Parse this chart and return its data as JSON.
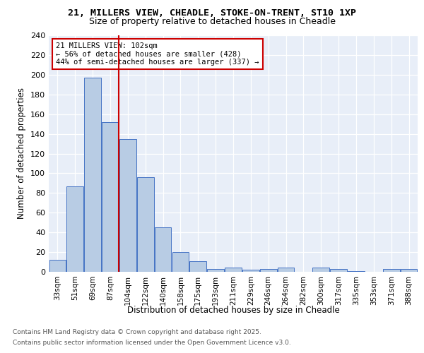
{
  "title_line1": "21, MILLERS VIEW, CHEADLE, STOKE-ON-TRENT, ST10 1XP",
  "title_line2": "Size of property relative to detached houses in Cheadle",
  "xlabel": "Distribution of detached houses by size in Cheadle",
  "ylabel": "Number of detached properties",
  "categories": [
    "33sqm",
    "51sqm",
    "69sqm",
    "87sqm",
    "104sqm",
    "122sqm",
    "140sqm",
    "158sqm",
    "175sqm",
    "193sqm",
    "211sqm",
    "229sqm",
    "246sqm",
    "264sqm",
    "282sqm",
    "300sqm",
    "317sqm",
    "335sqm",
    "353sqm",
    "371sqm",
    "388sqm"
  ],
  "values": [
    12,
    87,
    197,
    152,
    135,
    96,
    45,
    20,
    11,
    3,
    4,
    2,
    3,
    4,
    0,
    4,
    3,
    1,
    0,
    3,
    3
  ],
  "bar_color": "#b8cce4",
  "bar_edge_color": "#4472c4",
  "background_color": "#E8EEF8",
  "grid_color": "#ffffff",
  "vline_pos": 3.5,
  "vline_color": "#cc0000",
  "annotation_line1": "21 MILLERS VIEW: 102sqm",
  "annotation_line2": "← 56% of detached houses are smaller (428)",
  "annotation_line3": "44% of semi-detached houses are larger (337) →",
  "annotation_box_edgecolor": "#cc0000",
  "ylim": [
    0,
    240
  ],
  "yticks": [
    0,
    20,
    40,
    60,
    80,
    100,
    120,
    140,
    160,
    180,
    200,
    220,
    240
  ],
  "footnote_line1": "Contains HM Land Registry data © Crown copyright and database right 2025.",
  "footnote_line2": "Contains public sector information licensed under the Open Government Licence v3.0."
}
